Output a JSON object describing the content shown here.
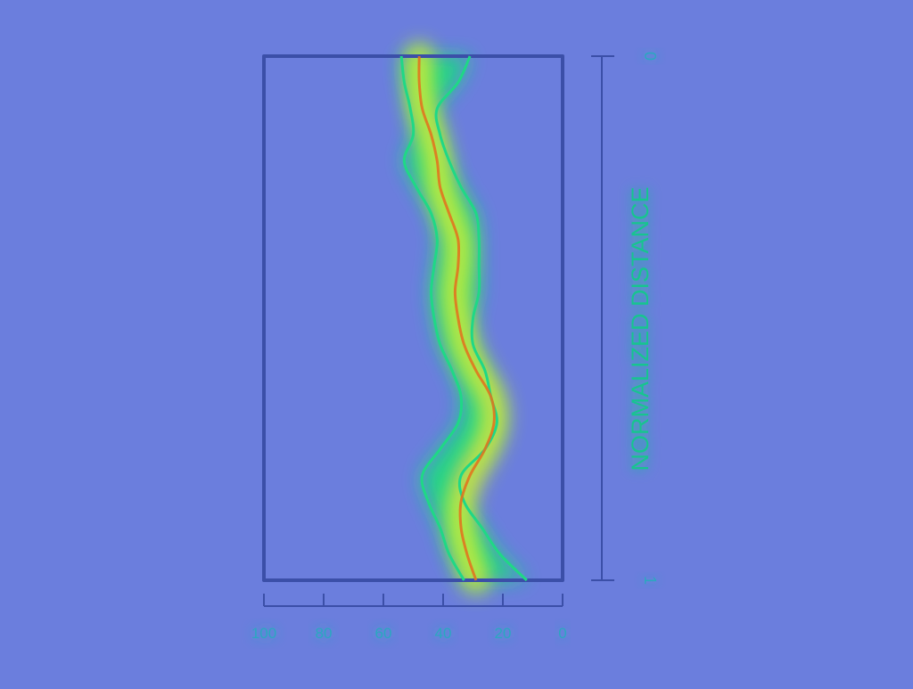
{
  "colors": {
    "background": "#6b7edd",
    "frame": "#3b4fa8",
    "axis": "#3b4fa8",
    "band_outer": "#1fd886",
    "band_inner": "#b8ee2e",
    "center_line": "#e0761f",
    "label": "#18c58f"
  },
  "chart_data": {
    "type": "line",
    "orientation": "vertical",
    "x_axis": {
      "label": "",
      "ticks": [
        "100",
        "80",
        "60",
        "40",
        "20",
        "0"
      ],
      "range": [
        100,
        0
      ],
      "reversed": true
    },
    "y_axis": {
      "label": "NORMALIZED DISTANCE",
      "ticks": [
        "0",
        "1"
      ],
      "range": [
        0,
        1
      ],
      "position": "right"
    },
    "grid": false,
    "legend": "none",
    "y": [
      0.0,
      0.05,
      0.1,
      0.15,
      0.2,
      0.25,
      0.3,
      0.35,
      0.4,
      0.45,
      0.5,
      0.55,
      0.6,
      0.65,
      0.7,
      0.75,
      0.8,
      0.85,
      0.9,
      0.95,
      1.0
    ],
    "series": [
      {
        "role": "center",
        "x": [
          48,
          48,
          47,
          44,
          42,
          41,
          38,
          35,
          35,
          36,
          35,
          33,
          29,
          24,
          23,
          26,
          31,
          34,
          34,
          32,
          29
        ]
      },
      {
        "role": "band_left",
        "x": [
          54,
          53,
          51,
          50,
          53,
          49,
          44,
          42,
          43,
          44,
          43,
          41,
          37,
          34,
          35,
          41,
          47,
          45,
          41,
          38,
          33
        ]
      },
      {
        "role": "band_right",
        "x": [
          31,
          35,
          42,
          41,
          38,
          34,
          29,
          28,
          28,
          28,
          30,
          30,
          26,
          24,
          22,
          26,
          34,
          33,
          27,
          21,
          12
        ]
      }
    ]
  }
}
